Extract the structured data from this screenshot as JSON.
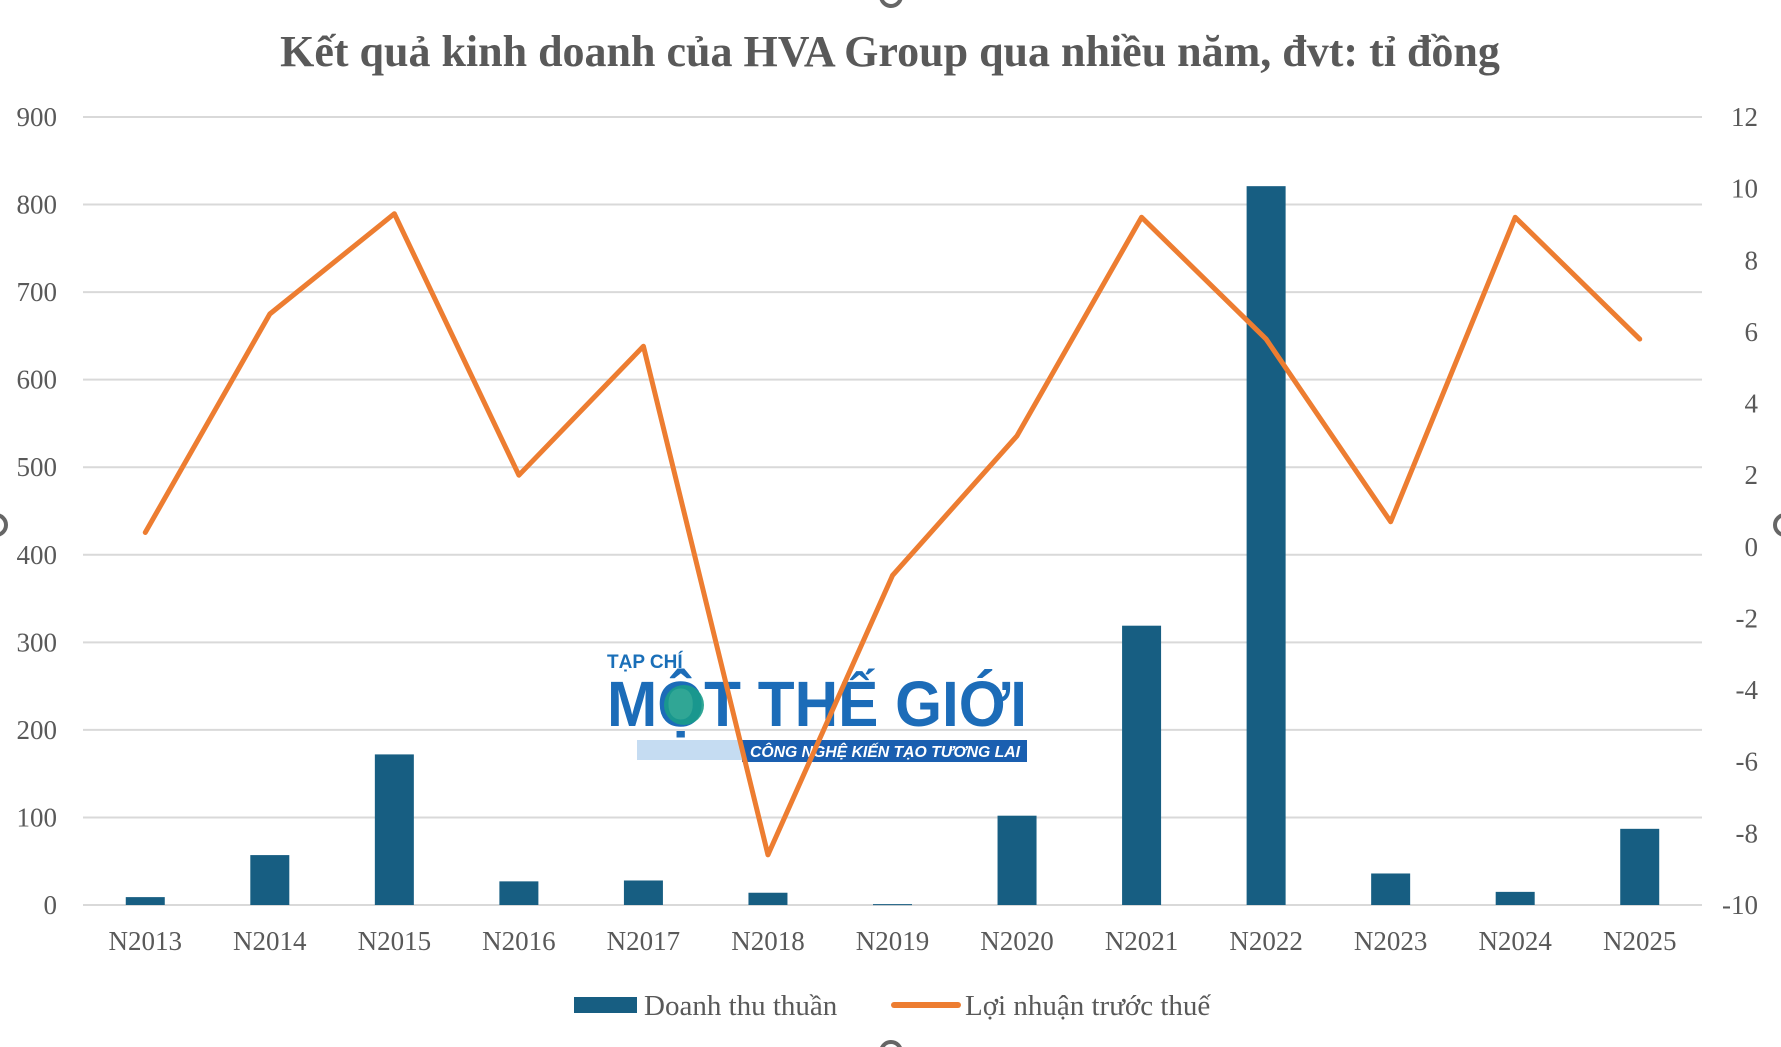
{
  "chart_data": {
    "type": "bar+line",
    "title": "Kết quả kinh doanh của HVA Group qua nhiều năm, đvt: tỉ đồng",
    "categories": [
      "N2013",
      "N2014",
      "N2015",
      "N2016",
      "N2017",
      "N2018",
      "N2019",
      "N2020",
      "N2021",
      "N2022",
      "N2023",
      "N2024",
      "N2025"
    ],
    "series": [
      {
        "name": "Doanh thu thuần",
        "type": "bar",
        "axis": "left",
        "color": "#175E82",
        "values": [
          9,
          57,
          172,
          27,
          28,
          14,
          1,
          102,
          319,
          821,
          36,
          15,
          87
        ]
      },
      {
        "name": "Lợi nhuận trước thuế",
        "type": "line",
        "axis": "right",
        "color": "#ED7D31",
        "values": [
          0.4,
          6.5,
          9.3,
          2.0,
          5.6,
          -8.6,
          -0.8,
          3.1,
          9.2,
          5.8,
          0.7,
          9.2,
          5.8
        ]
      }
    ],
    "y_left": {
      "min": 0,
      "max": 900,
      "ticks": [
        0,
        100,
        200,
        300,
        400,
        500,
        600,
        700,
        800,
        900
      ]
    },
    "y_right": {
      "min": -10,
      "max": 12,
      "ticks": [
        -10,
        -8,
        -6,
        -4,
        -2,
        0,
        2,
        4,
        6,
        8,
        10,
        12
      ]
    },
    "grid": true,
    "legend_position": "bottom"
  },
  "watermark": {
    "top": "TẠP CHÍ",
    "main": "MỘT THẾ GIỚI",
    "tagline": "CÔNG NGHỆ KIẾN TẠO TƯƠNG LAI"
  }
}
